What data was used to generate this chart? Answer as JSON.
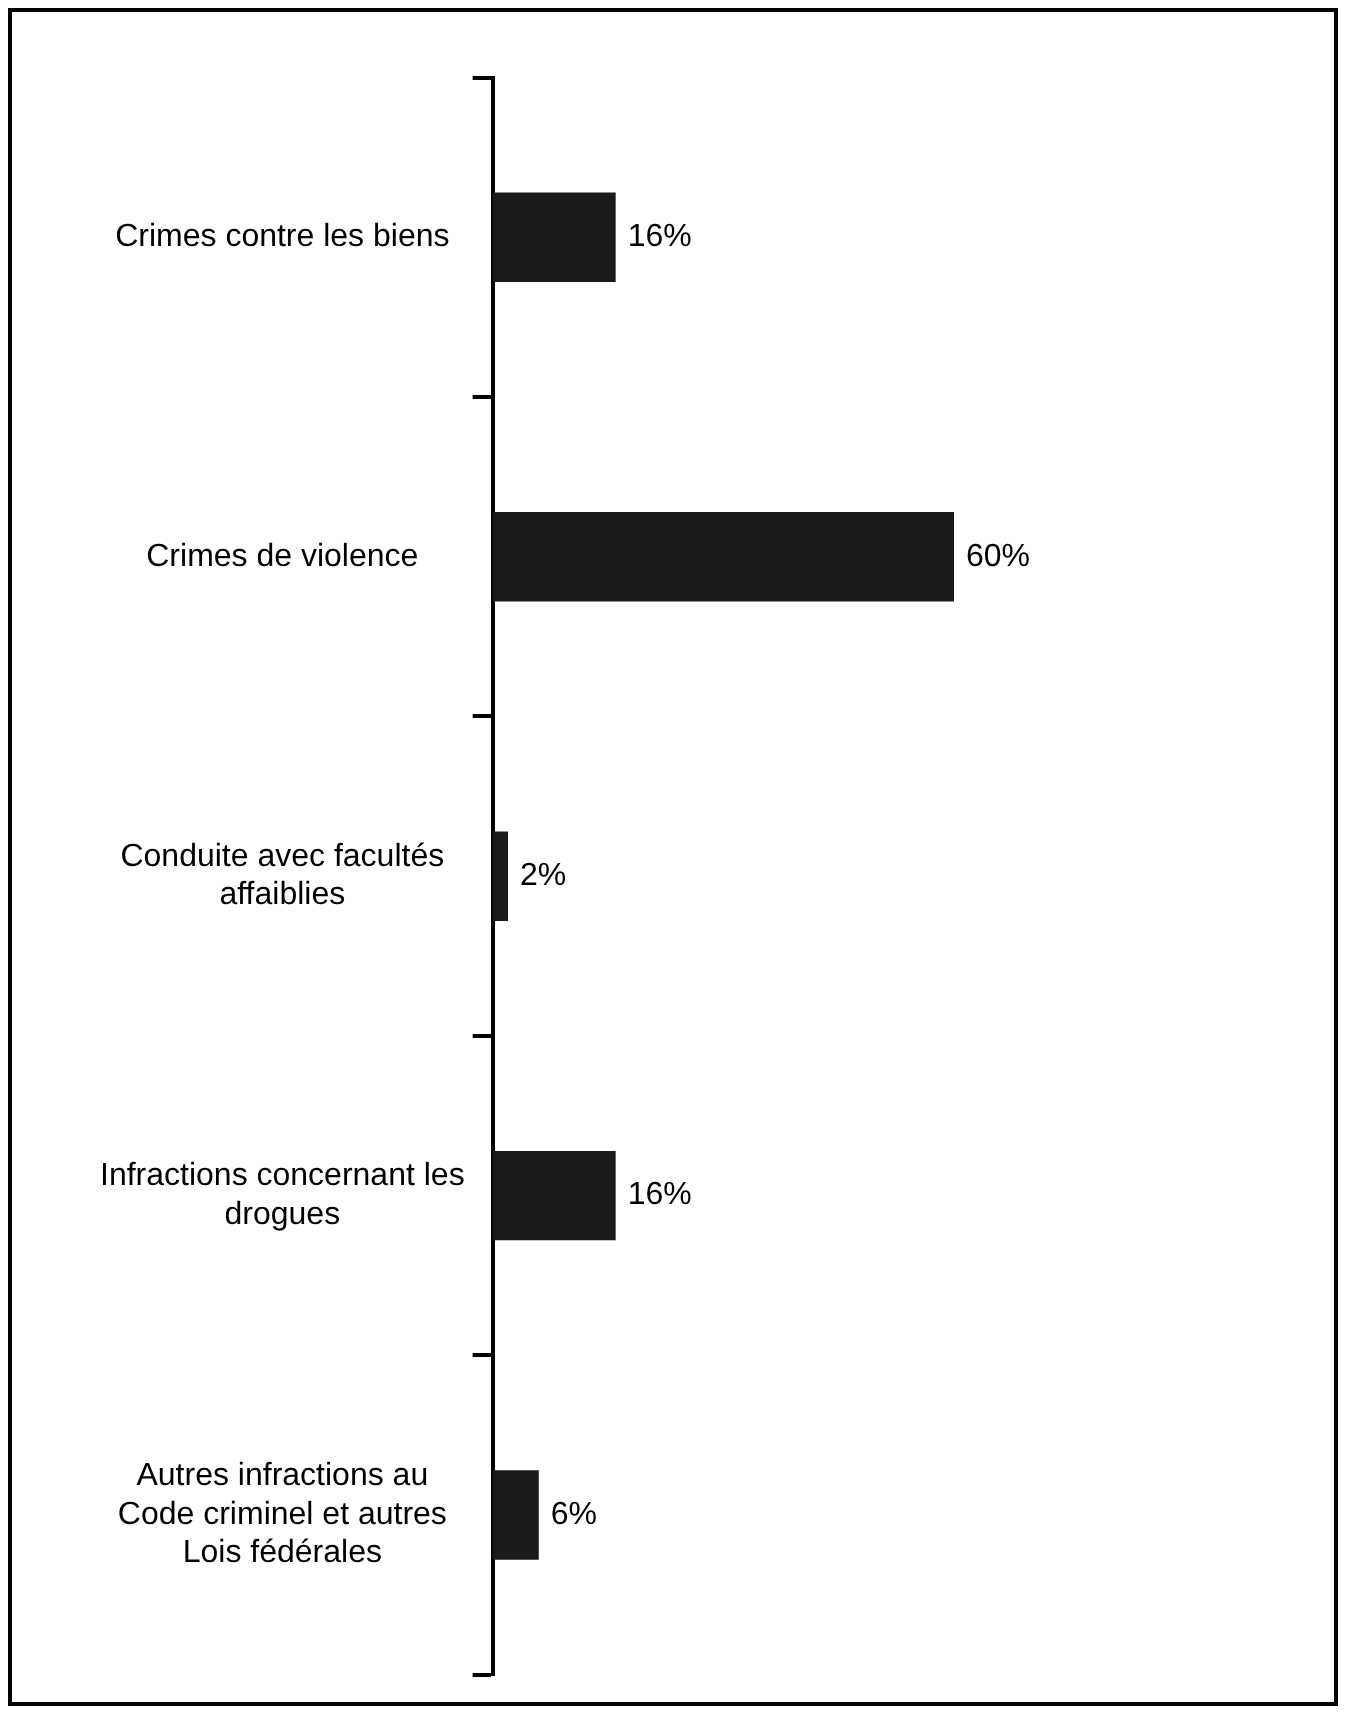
{
  "chart_data": {
    "type": "bar",
    "orientation": "horizontal",
    "categories": [
      "Crimes contre les biens",
      "Crimes de violence",
      "Conduite avec facultés affaiblies",
      "Infractions concernant les drogues",
      "Autres infractions au Code criminel et autres Lois fédérales"
    ],
    "values": [
      16,
      60,
      2,
      16,
      6
    ],
    "value_labels": [
      "16%",
      "60%",
      "2%",
      "16%",
      "6%"
    ],
    "color": "#1a1a1a",
    "tick_labels": "y",
    "legend": false
  }
}
